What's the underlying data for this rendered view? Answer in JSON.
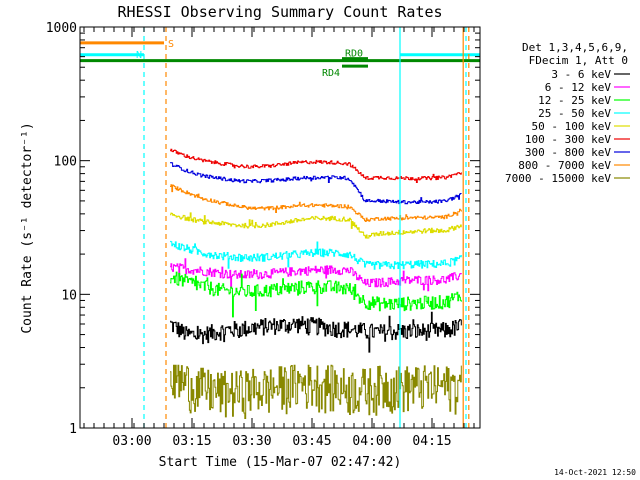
{
  "chart_data": {
    "type": "line",
    "title": "RHESSI Observing Summary Count Rates",
    "xlabel": "Start Time (15-Mar-07 02:47:42)",
    "ylabel": "Count Rate (s⁻¹ detector⁻¹)",
    "yscale": "log",
    "ylim": [
      1,
      1000
    ],
    "xlim_minutes_after_0247": [
      0,
      100
    ],
    "x_tick_labels": [
      "03:00",
      "03:15",
      "03:30",
      "03:45",
      "04:00",
      "04:15"
    ],
    "x_tick_minutes": [
      13,
      28,
      43,
      58,
      73,
      88
    ],
    "y_tick_labels": [
      "1",
      "10",
      "100",
      "1000"
    ],
    "y_tick_values": [
      1,
      10,
      100,
      1000
    ],
    "legend_header": [
      "Det 1,3,4,5,6,9,",
      "FDecim 1, Att 0"
    ],
    "legend_position": "top-right",
    "data_start_minute": 22.5,
    "data_end_minute": 95.5,
    "gap_start_minute": 67.5,
    "gap_end_minute": 72.2,
    "series": [
      {
        "name": "3 - 6 keV",
        "color": "#000000",
        "shape": [
          6.0,
          5.0,
          5.0,
          5.3,
          5.5,
          5.6,
          5.8,
          5.9,
          6.0,
          5.8,
          5.6,
          5.5,
          5.3,
          5.2,
          5.3,
          5.3,
          5.3,
          5.4,
          5.8
        ],
        "noise": 0.15
      },
      {
        "name": "6 - 12 keV",
        "color": "#ff00ff",
        "shape": [
          16.0,
          15.5,
          15.0,
          14.5,
          14.0,
          14.0,
          14.3,
          14.6,
          15.0,
          15.2,
          15.3,
          15.2,
          12.0,
          12.3,
          12.5,
          12.8,
          12.8,
          12.9,
          14.0
        ],
        "noise": 0.08
      },
      {
        "name": "12 - 25 keV",
        "color": "#00ff00",
        "shape": [
          13.5,
          12.5,
          11.5,
          10.8,
          10.5,
          10.5,
          10.7,
          11.0,
          11.3,
          11.5,
          11.3,
          11.0,
          8.8,
          8.5,
          8.5,
          8.6,
          8.7,
          8.8,
          10.0
        ],
        "noise": 0.12
      },
      {
        "name": "25 - 50 keV",
        "color": "#00ffff",
        "shape": [
          24.0,
          22.0,
          20.5,
          19.5,
          19.0,
          18.8,
          19.0,
          19.5,
          20.0,
          20.5,
          20.5,
          20.0,
          16.5,
          16.5,
          16.5,
          16.8,
          16.8,
          17.0,
          18.5
        ],
        "noise": 0.07
      },
      {
        "name": "50 - 100 keV",
        "color": "#dddd00",
        "shape": [
          40.0,
          37.0,
          35.0,
          34.0,
          33.0,
          32.5,
          33.0,
          34.5,
          36.0,
          37.0,
          37.0,
          36.5,
          27.0,
          28.5,
          29.0,
          29.5,
          30.0,
          30.0,
          33.0
        ],
        "noise": 0.04
      },
      {
        "name": "100 - 300 keV",
        "color": "#ee0000",
        "shape": [
          120.0,
          108.0,
          100.0,
          96.0,
          92.0,
          90.0,
          91.0,
          94.0,
          97.0,
          98.0,
          97.0,
          95.0,
          74.0,
          75.0,
          74.0,
          74.0,
          74.0,
          75.0,
          82.0
        ],
        "noise": 0.03
      },
      {
        "name": "300 - 800 keV",
        "color": "#0000dd",
        "shape": [
          95.0,
          84.0,
          77.0,
          74.0,
          71.0,
          70.0,
          71.0,
          72.0,
          74.0,
          75.0,
          75.0,
          74.0,
          50.0,
          50.0,
          49.0,
          49.0,
          49.0,
          50.0,
          56.0
        ],
        "noise": 0.03
      },
      {
        "name": "800 - 7000 keV",
        "color": "#ff8800",
        "shape": [
          65.0,
          58.0,
          52.0,
          49.0,
          46.0,
          44.0,
          44.0,
          45.0,
          46.0,
          46.5,
          46.0,
          45.5,
          36.0,
          37.0,
          37.0,
          37.5,
          37.5,
          38.0,
          43.0
        ],
        "noise": 0.03
      },
      {
        "name": "7000 - 15000 keV",
        "color": "#888800",
        "shape": [
          2.5,
          2.2,
          2.0,
          1.9,
          1.9,
          2.0,
          2.0,
          2.1,
          2.2,
          2.2,
          2.1,
          2.0,
          2.0,
          2.1,
          2.1,
          2.1,
          2.1,
          2.1,
          2.1
        ],
        "noise": 0.4
      }
    ],
    "flag_bars": [
      {
        "label": "S",
        "color": "#ff8800",
        "start_minute": 0,
        "end_minute": 21,
        "y": 760
      },
      {
        "label": "N",
        "color": "#00ffff",
        "start_minute": 0,
        "end_minute": 16,
        "y": 620
      },
      {
        "label": "",
        "color": "#00ffff",
        "start_minute": 80,
        "end_minute": 100,
        "y": 620
      },
      {
        "label": "",
        "color": "#008800",
        "start_minute": 0,
        "end_minute": 100,
        "y": 560
      },
      {
        "label": "RD0",
        "color": "#008800",
        "start_minute": 65.5,
        "end_minute": 72,
        "y": 580
      },
      {
        "label": "RD4",
        "color": "#008800",
        "start_minute": 65.5,
        "end_minute": 72,
        "y": 510
      }
    ],
    "vertical_markers": [
      {
        "minute": 16,
        "color": "#00ffff",
        "style": "dashed"
      },
      {
        "minute": 21.5,
        "color": "#ff8800",
        "style": "dashed"
      },
      {
        "minute": 80,
        "color": "#00ffff",
        "style": "solid"
      },
      {
        "minute": 95.8,
        "color": "#ff8800",
        "style": "solid"
      },
      {
        "minute": 96.5,
        "color": "#00ffff",
        "style": "dashed"
      },
      {
        "minute": 97.2,
        "color": "#ff8800",
        "style": "dashed"
      }
    ]
  },
  "footer": {
    "timestamp": "14-Oct-2021 12:50"
  }
}
